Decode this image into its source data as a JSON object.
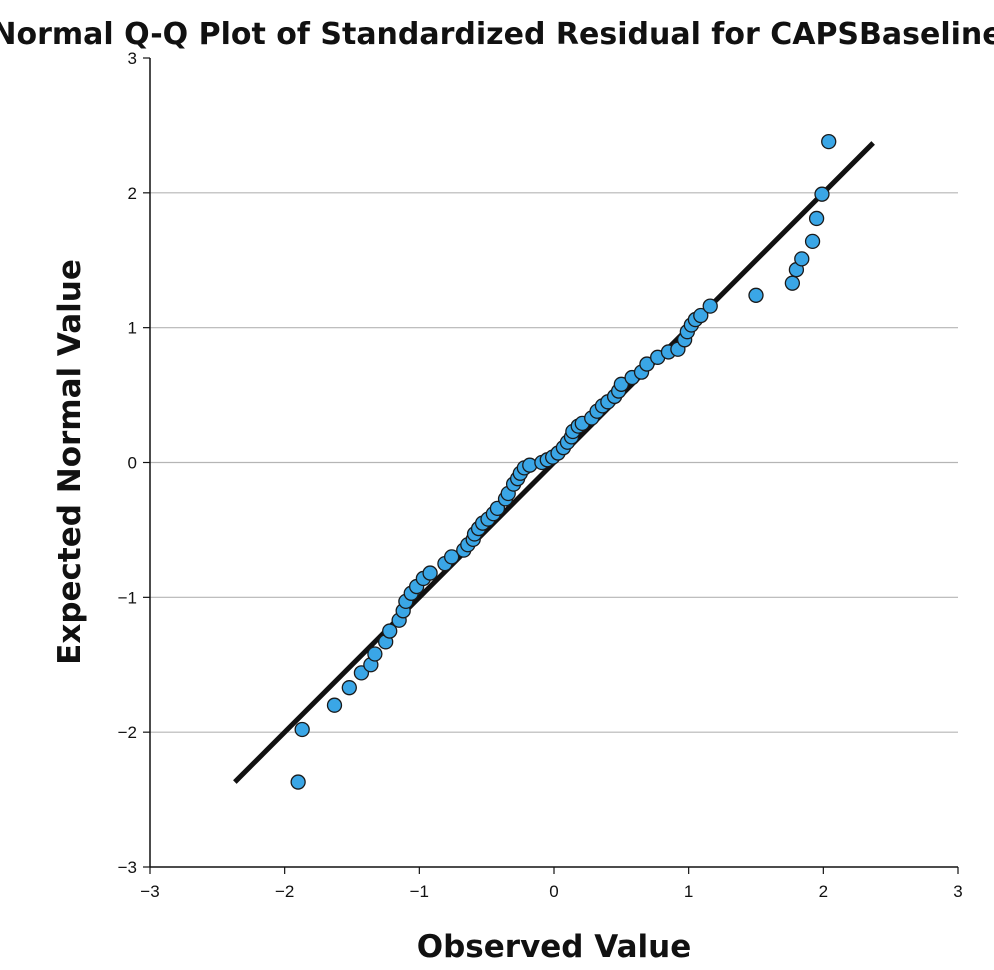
{
  "chart_data": {
    "type": "scatter",
    "title": "Normal Q-Q Plot of Standardized Residual for CAPSBaseline",
    "xlabel": "Observed Value",
    "ylabel": "Expected Normal Value",
    "xlim": [
      -3,
      3
    ],
    "ylim": [
      -3,
      3
    ],
    "x_ticks": [
      "−3",
      "−2",
      "−1",
      "0",
      "1",
      "2",
      "3"
    ],
    "y_ticks": [
      "3",
      "2",
      "1",
      "0",
      "−1",
      "−2",
      "−3"
    ],
    "grid": "horizontal",
    "colors": {
      "points": "#3aa6e6",
      "point_edge": "#1a1a1a",
      "reference_line": "#111111",
      "grid": "#b5b5b5"
    },
    "reference_line": {
      "x": [
        -2.37,
        2.37
      ],
      "y": [
        -2.37,
        2.37
      ]
    },
    "points": [
      {
        "x": -1.9,
        "y": -2.37
      },
      {
        "x": -1.87,
        "y": -1.98
      },
      {
        "x": -1.63,
        "y": -1.8
      },
      {
        "x": -1.52,
        "y": -1.67
      },
      {
        "x": -1.43,
        "y": -1.56
      },
      {
        "x": -1.36,
        "y": -1.5
      },
      {
        "x": -1.33,
        "y": -1.42
      },
      {
        "x": -1.25,
        "y": -1.33
      },
      {
        "x": -1.22,
        "y": -1.25
      },
      {
        "x": -1.15,
        "y": -1.17
      },
      {
        "x": -1.12,
        "y": -1.1
      },
      {
        "x": -1.1,
        "y": -1.03
      },
      {
        "x": -1.06,
        "y": -0.97
      },
      {
        "x": -1.02,
        "y": -0.92
      },
      {
        "x": -0.97,
        "y": -0.86
      },
      {
        "x": -0.92,
        "y": -0.82
      },
      {
        "x": -0.81,
        "y": -0.75
      },
      {
        "x": -0.76,
        "y": -0.7
      },
      {
        "x": -0.67,
        "y": -0.65
      },
      {
        "x": -0.64,
        "y": -0.61
      },
      {
        "x": -0.6,
        "y": -0.57
      },
      {
        "x": -0.59,
        "y": -0.53
      },
      {
        "x": -0.56,
        "y": -0.49
      },
      {
        "x": -0.53,
        "y": -0.45
      },
      {
        "x": -0.49,
        "y": -0.42
      },
      {
        "x": -0.45,
        "y": -0.38
      },
      {
        "x": -0.42,
        "y": -0.34
      },
      {
        "x": -0.36,
        "y": -0.27
      },
      {
        "x": -0.34,
        "y": -0.23
      },
      {
        "x": -0.3,
        "y": -0.16
      },
      {
        "x": -0.27,
        "y": -0.12
      },
      {
        "x": -0.25,
        "y": -0.08
      },
      {
        "x": -0.22,
        "y": -0.04
      },
      {
        "x": -0.18,
        "y": -0.02
      },
      {
        "x": -0.09,
        "y": 0.0
      },
      {
        "x": -0.05,
        "y": 0.02
      },
      {
        "x": -0.01,
        "y": 0.04
      },
      {
        "x": 0.03,
        "y": 0.07
      },
      {
        "x": 0.07,
        "y": 0.11
      },
      {
        "x": 0.1,
        "y": 0.15
      },
      {
        "x": 0.13,
        "y": 0.19
      },
      {
        "x": 0.14,
        "y": 0.23
      },
      {
        "x": 0.18,
        "y": 0.27
      },
      {
        "x": 0.21,
        "y": 0.29
      },
      {
        "x": 0.28,
        "y": 0.33
      },
      {
        "x": 0.32,
        "y": 0.38
      },
      {
        "x": 0.36,
        "y": 0.42
      },
      {
        "x": 0.4,
        "y": 0.45
      },
      {
        "x": 0.45,
        "y": 0.49
      },
      {
        "x": 0.48,
        "y": 0.53
      },
      {
        "x": 0.5,
        "y": 0.58
      },
      {
        "x": 0.58,
        "y": 0.63
      },
      {
        "x": 0.65,
        "y": 0.67
      },
      {
        "x": 0.69,
        "y": 0.73
      },
      {
        "x": 0.77,
        "y": 0.78
      },
      {
        "x": 0.85,
        "y": 0.82
      },
      {
        "x": 0.92,
        "y": 0.84
      },
      {
        "x": 0.97,
        "y": 0.91
      },
      {
        "x": 0.99,
        "y": 0.97
      },
      {
        "x": 1.02,
        "y": 1.02
      },
      {
        "x": 1.05,
        "y": 1.06
      },
      {
        "x": 1.09,
        "y": 1.09
      },
      {
        "x": 1.16,
        "y": 1.16
      },
      {
        "x": 1.5,
        "y": 1.24
      },
      {
        "x": 1.77,
        "y": 1.33
      },
      {
        "x": 1.8,
        "y": 1.43
      },
      {
        "x": 1.84,
        "y": 1.51
      },
      {
        "x": 1.92,
        "y": 1.64
      },
      {
        "x": 1.95,
        "y": 1.81
      },
      {
        "x": 1.99,
        "y": 1.99
      },
      {
        "x": 2.04,
        "y": 2.38
      }
    ]
  }
}
